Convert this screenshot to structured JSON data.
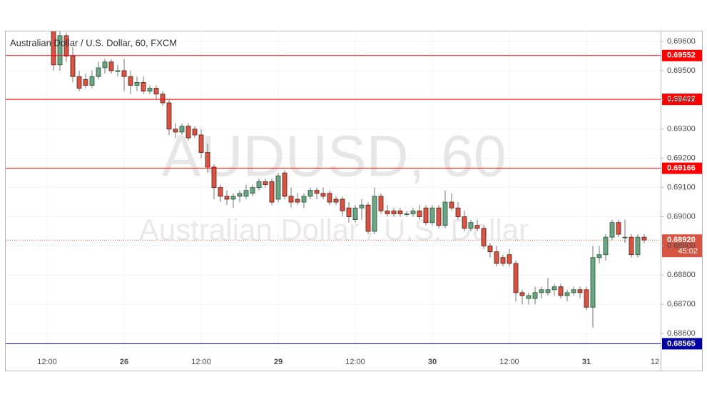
{
  "chart_data": {
    "type": "candlestick",
    "title": "Australian Dollar / U.S. Dollar, 60, FXCM",
    "watermark": "AUDUSD, 60",
    "watermark_subtitle": "Australian Dollar / U.S. Dollar",
    "categories": [
      "12:00",
      null,
      null,
      null,
      null,
      null,
      null,
      null,
      null,
      null,
      null,
      null,
      "26",
      null,
      null,
      null,
      null,
      null,
      null,
      null,
      null,
      null,
      null,
      null,
      "12:00",
      null,
      null,
      null,
      null,
      null,
      null,
      null,
      null,
      null,
      null,
      null,
      "29",
      null,
      null,
      null,
      null,
      null,
      null,
      null,
      null,
      null,
      null,
      null,
      "12:00",
      null,
      null,
      null,
      null,
      null,
      null,
      null,
      null,
      null,
      null,
      null,
      "30",
      null,
      null,
      null,
      null,
      null,
      null,
      null,
      null,
      null,
      null,
      null,
      "12:00",
      null,
      null,
      null,
      null,
      null,
      null,
      null,
      null,
      null,
      null,
      null,
      "31",
      null,
      null,
      null,
      null,
      null,
      null,
      null,
      null,
      null,
      null,
      null,
      "12"
    ],
    "open": [
      null,
      0.6964,
      0.6952,
      0.6962,
      0.6955,
      0.6948,
      0.6947,
      0.6945,
      0.6948,
      0.6951,
      0.6953,
      0.695,
      0.695,
      0.6948,
      0.6945,
      0.6946,
      0.6943,
      0.6944,
      0.6942,
      0.6939,
      0.693,
      0.6929,
      0.6931,
      0.693,
      0.6928,
      0.6922,
      0.6917,
      0.691,
      0.6907,
      0.6906,
      0.6907,
      0.6907,
      0.6908,
      0.691,
      0.6912,
      0.6912,
      0.6906,
      0.6915,
      0.6907,
      0.6906,
      0.6905,
      0.6907,
      0.6909,
      0.6908,
      0.6908,
      0.6906,
      0.6906,
      0.6903,
      0.6899,
      0.6903,
      0.6904,
      0.6895,
      0.6907,
      0.6902,
      0.6902,
      0.6902,
      0.6901,
      0.6901,
      0.6902,
      0.6903,
      0.6898,
      0.6903,
      0.6897,
      0.6905,
      0.6903,
      0.69,
      0.6896,
      0.6897,
      0.6896,
      0.689,
      0.6888,
      0.6886,
      0.6887,
      0.6884,
      0.6874,
      0.6872,
      0.6872,
      0.6874,
      0.6874,
      0.6875,
      0.6876,
      0.6873,
      0.6874,
      0.6875,
      0.6875,
      0.6869,
      0.6886,
      0.6887,
      0.6893,
      0.6898,
      0.6893,
      0.6893,
      0.6887,
      0.6893,
      null,
      null,
      null
    ],
    "high": [
      null,
      0.6966,
      0.6964,
      0.6963,
      0.6958,
      0.695,
      0.6949,
      0.695,
      0.6953,
      0.6954,
      0.6954,
      0.6952,
      0.6954,
      0.695,
      0.6948,
      0.6948,
      0.6945,
      0.6945,
      0.6943,
      0.694,
      0.6932,
      0.6932,
      0.6932,
      0.6931,
      0.693,
      0.6925,
      0.6918,
      0.6911,
      0.6909,
      0.6908,
      0.6909,
      0.6911,
      0.6911,
      0.6913,
      0.6913,
      0.6913,
      0.6915,
      0.6916,
      0.691,
      0.6908,
      0.6908,
      0.691,
      0.691,
      0.691,
      0.6909,
      0.6907,
      0.6907,
      0.6905,
      0.6904,
      0.6906,
      0.6905,
      0.691,
      0.6908,
      0.6904,
      0.6903,
      0.6903,
      0.6902,
      0.6903,
      0.6904,
      0.6904,
      0.6904,
      0.6904,
      0.6909,
      0.6908,
      0.6905,
      0.6902,
      0.6899,
      0.6899,
      0.6897,
      0.6891,
      0.689,
      0.6887,
      0.6889,
      0.6885,
      0.6875,
      0.6874,
      0.6876,
      0.6876,
      0.6879,
      0.6877,
      0.6877,
      0.6875,
      0.6876,
      0.6876,
      0.6876,
      0.689,
      0.689,
      0.6894,
      0.6899,
      0.6899,
      0.6899,
      0.6894,
      0.6894,
      0.6894,
      null,
      null,
      null
    ],
    "low": [
      null,
      0.695,
      0.695,
      0.6953,
      0.6946,
      0.6943,
      0.6944,
      0.6944,
      0.6947,
      0.6949,
      0.6949,
      0.6948,
      0.6943,
      0.6942,
      0.6943,
      0.6942,
      0.6942,
      0.694,
      0.6938,
      0.6928,
      0.6927,
      0.6928,
      0.6926,
      0.6927,
      0.692,
      0.6915,
      0.6906,
      0.6905,
      0.6904,
      0.6903,
      0.6905,
      0.6906,
      0.6907,
      0.6909,
      0.691,
      0.6904,
      0.6905,
      0.6906,
      0.6903,
      0.6904,
      0.6903,
      0.6906,
      0.6906,
      0.6906,
      0.6904,
      0.6904,
      0.69,
      0.6898,
      0.6898,
      0.6899,
      0.6894,
      0.6894,
      0.6901,
      0.69,
      0.69,
      0.69,
      0.69,
      0.69,
      0.6899,
      0.6897,
      0.6897,
      0.6896,
      0.6896,
      0.6902,
      0.6899,
      0.6895,
      0.6895,
      0.6895,
      0.6889,
      0.6886,
      0.6883,
      0.6883,
      0.6883,
      0.6871,
      0.687,
      0.687,
      0.687,
      0.6872,
      0.6873,
      0.6873,
      0.6872,
      0.6871,
      0.6873,
      0.6872,
      0.6868,
      0.6862,
      0.6884,
      0.6885,
      0.6892,
      0.6893,
      0.6891,
      0.6886,
      0.6886,
      0.6891,
      null,
      null,
      null
    ],
    "close": [
      null,
      0.6952,
      0.6962,
      0.6955,
      0.6948,
      0.6944,
      0.6945,
      0.6948,
      0.6951,
      0.6953,
      0.695,
      0.695,
      0.6948,
      0.6945,
      0.6946,
      0.6943,
      0.6944,
      0.6942,
      0.6939,
      0.693,
      0.6929,
      0.6931,
      0.6927,
      0.6928,
      0.6922,
      0.6917,
      0.691,
      0.6907,
      0.6906,
      0.6907,
      0.6908,
      0.6909,
      0.691,
      0.6912,
      0.6911,
      0.6905,
      0.6914,
      0.6907,
      0.6905,
      0.6905,
      0.6907,
      0.6909,
      0.6908,
      0.6907,
      0.6905,
      0.6905,
      0.6902,
      0.69,
      0.6903,
      0.6904,
      0.6895,
      0.6907,
      0.6902,
      0.6901,
      0.6901,
      0.6901,
      0.6901,
      0.6902,
      0.69,
      0.6898,
      0.6903,
      0.6897,
      0.6905,
      0.6903,
      0.69,
      0.6896,
      0.6898,
      0.6896,
      0.689,
      0.6888,
      0.6884,
      0.6884,
      0.6884,
      0.6874,
      0.6873,
      0.6873,
      0.6874,
      0.6875,
      0.6875,
      0.6876,
      0.6873,
      0.6874,
      0.6875,
      0.6874,
      0.6869,
      0.6886,
      0.6887,
      0.6893,
      0.6898,
      0.6894,
      0.6893,
      0.6887,
      0.6893,
      0.6892,
      null,
      null,
      null
    ],
    "up_color": "#6ba583",
    "down_color": "#d75442",
    "wick_color": "#737375",
    "ylim": [
      0.68544,
      0.69637
    ],
    "yticks": [
      {
        "value": 0.696,
        "label": "0.69600"
      },
      {
        "value": 0.695,
        "label": "0.69500"
      },
      {
        "value": 0.694,
        "label": "0.69400"
      },
      {
        "value": 0.693,
        "label": "0.69300"
      },
      {
        "value": 0.692,
        "label": "0.69200"
      },
      {
        "value": 0.691,
        "label": "0.69100"
      },
      {
        "value": 0.69,
        "label": "0.69000"
      },
      {
        "value": 0.689,
        "label": "0.68900"
      },
      {
        "value": 0.688,
        "label": "0.68800"
      },
      {
        "value": 0.687,
        "label": "0.68700"
      },
      {
        "value": 0.686,
        "label": "0.68600"
      }
    ],
    "grid": true,
    "levels": [
      {
        "value": 0.69552,
        "label": "0.69552",
        "color": "#ff0000"
      },
      {
        "value": 0.69402,
        "label": "0.69402",
        "color": "#ff0000"
      },
      {
        "value": 0.69166,
        "label": "0.69166",
        "color": "#ff0000"
      },
      {
        "value": 0.68565,
        "label": "0.68565",
        "color": "#0000a0"
      }
    ],
    "current_price": {
      "value": 0.6892,
      "label": "0.68920",
      "countdown": "45:02",
      "color": "#d75442"
    }
  }
}
